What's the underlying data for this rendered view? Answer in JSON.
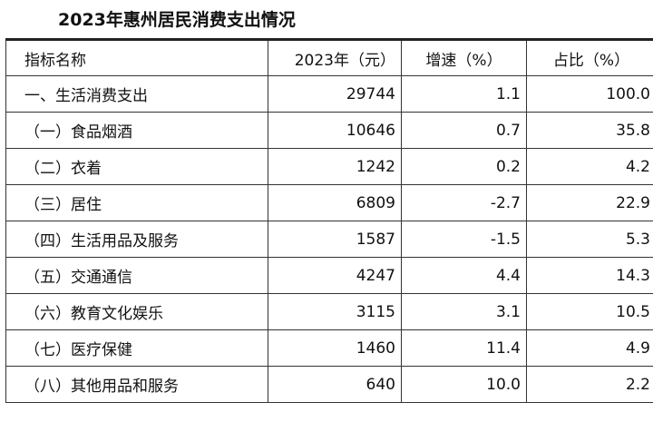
{
  "title": "2023年惠州居民消费支出情况",
  "headers": [
    "指标名称",
    "2023年（元）",
    "增速（%）",
    "占比（%）"
  ],
  "rows": [
    [
      "一、生活消费支出",
      "29744",
      "1.1",
      "100.0"
    ],
    [
      "（一）食品烟酒",
      "10646",
      "0.7",
      "35.8"
    ],
    [
      "（二）衣着",
      "1242",
      "0.2",
      "4.2"
    ],
    [
      "（三）居住",
      "6809",
      "-2.7",
      "22.9"
    ],
    [
      "（四）生活用品及服务",
      "1587",
      "-1.5",
      "5.3"
    ],
    [
      "（五）交通通信",
      "4247",
      "4.4",
      "14.3"
    ],
    [
      "（六）教育文化娱乐",
      "3115",
      "3.1",
      "10.5"
    ],
    [
      "（七）医疗保健",
      "1460",
      "11.4",
      "4.9"
    ],
    [
      "（八）其他用品和服务",
      "640",
      "10.0",
      "2.2"
    ]
  ]
}
